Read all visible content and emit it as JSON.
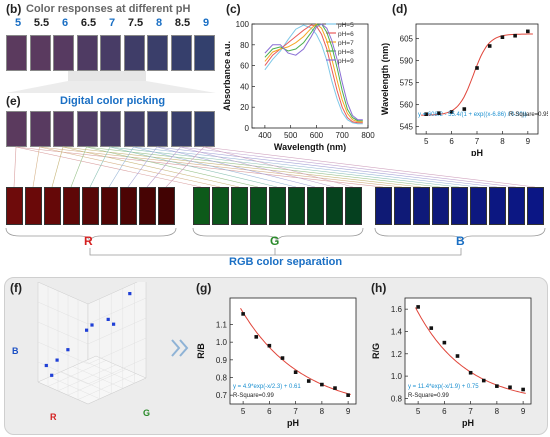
{
  "panels": {
    "b": {
      "label": "(b)",
      "title": "Color responses at different pH",
      "ph_labels": [
        "5",
        "5.5",
        "6",
        "6.5",
        "7",
        "7.5",
        "8",
        "8.5",
        "9"
      ],
      "blue_indices": [
        0,
        2,
        4,
        6,
        8
      ],
      "swatch_colors": [
        "#5b3a5e",
        "#5a3a5f",
        "#573a61",
        "#4f3b63",
        "#483c66",
        "#3f3d68",
        "#3a3e6a",
        "#363f6c",
        "#33406d"
      ]
    },
    "e": {
      "label": "(e)",
      "title": "Digital color picking",
      "swatch_colors": [
        "#5b3a5e",
        "#583a60",
        "#563b61",
        "#4f3c64",
        "#483d66",
        "#423e68",
        "#3d3e6a",
        "#393f6b",
        "#35406c"
      ]
    },
    "c": {
      "label": "(c)"
    },
    "d": {
      "label": "(d)"
    },
    "rgb": {
      "caption": "RGB color separation",
      "r_label": "R",
      "g_label": "G",
      "b_label": "B",
      "r_colors": [
        "#6e0b0b",
        "#6a0909",
        "#650808",
        "#5e0707",
        "#570606",
        "#510505",
        "#4c0404",
        "#470404",
        "#420303"
      ],
      "g_colors": [
        "#0d5a1a",
        "#0c561b",
        "#0b531b",
        "#0a4f1c",
        "#094c1d",
        "#08491d",
        "#07461e",
        "#06431e",
        "#05401f"
      ],
      "b_colors": [
        "#0f1a75",
        "#0f1a77",
        "#0e1979",
        "#0e197b",
        "#0d187d",
        "#0d187f",
        "#0c1781",
        "#0c1783",
        "#0b1685"
      ]
    },
    "f": {
      "label": "(f)",
      "axis_b": "B",
      "axis_r": "R",
      "axis_g": "G"
    },
    "g": {
      "label": "(g)"
    },
    "h": {
      "label": "(h)"
    }
  },
  "colors": {
    "accent_blue": "#1a6fc4",
    "red": "#d42020",
    "green": "#2a8a2a",
    "fit_red": "#e0453a"
  },
  "chart_data": [
    {
      "id": "c",
      "type": "line",
      "xlabel": "Wavelength (nm)",
      "ylabel": "Absorbance a.u.",
      "xlim": [
        350,
        800
      ],
      "ylim": [
        0,
        100
      ],
      "xticks": [
        400,
        500,
        600,
        700,
        800
      ],
      "yticks": [
        0,
        20,
        40,
        60,
        80,
        100
      ],
      "legend_position": "top-right",
      "series": [
        {
          "name": "pH=5",
          "color": "#7ec8e8",
          "x": [
            400,
            430,
            460,
            490,
            520,
            550,
            580,
            600,
            620,
            640,
            660,
            680,
            700,
            720,
            740,
            760,
            780
          ],
          "y": [
            56,
            66,
            74,
            85,
            95,
            99,
            96,
            90,
            80,
            65,
            45,
            28,
            15,
            8,
            5,
            4,
            4
          ]
        },
        {
          "name": "pH=6",
          "color": "#e85a5a",
          "x": [
            400,
            430,
            460,
            490,
            520,
            550,
            580,
            600,
            620,
            640,
            660,
            680,
            700,
            720,
            740,
            760,
            780
          ],
          "y": [
            60,
            70,
            76,
            82,
            88,
            94,
            99,
            98,
            90,
            76,
            56,
            36,
            20,
            10,
            6,
            5,
            5
          ]
        },
        {
          "name": "pH=7",
          "color": "#f5a623",
          "x": [
            400,
            430,
            460,
            490,
            520,
            550,
            580,
            600,
            620,
            640,
            660,
            680,
            700,
            720,
            740,
            760,
            780
          ],
          "y": [
            64,
            73,
            76,
            78,
            82,
            88,
            96,
            100,
            96,
            84,
            66,
            46,
            27,
            14,
            8,
            6,
            6
          ]
        },
        {
          "name": "pH=8",
          "color": "#4caf50",
          "x": [
            400,
            430,
            460,
            490,
            520,
            550,
            580,
            600,
            620,
            640,
            660,
            680,
            700,
            720,
            740,
            760,
            780
          ],
          "y": [
            68,
            76,
            78,
            74,
            76,
            82,
            92,
            99,
            100,
            92,
            78,
            58,
            36,
            18,
            10,
            7,
            7
          ]
        },
        {
          "name": "pH=9",
          "color": "#8a6fd6",
          "x": [
            400,
            430,
            460,
            490,
            520,
            550,
            580,
            600,
            620,
            640,
            660,
            680,
            700,
            720,
            740,
            760,
            780
          ],
          "y": [
            72,
            80,
            80,
            72,
            70,
            76,
            88,
            97,
            100,
            96,
            84,
            66,
            44,
            24,
            12,
            8,
            8
          ]
        }
      ]
    },
    {
      "id": "d",
      "type": "scatter",
      "xlabel": "pH",
      "ylabel": "Wavelength (nm)",
      "xlim": [
        4.6,
        9.4
      ],
      "ylim": [
        540,
        615
      ],
      "xticks": [
        5,
        6,
        7,
        8,
        9
      ],
      "yticks": [
        545,
        560,
        575,
        590,
        605
      ],
      "points": {
        "x": [
          5,
          5.5,
          6,
          6.5,
          7,
          7.5,
          8,
          8.5,
          9
        ],
        "y": [
          553.5,
          554.2,
          555,
          557,
          585,
          600,
          606,
          607,
          610
        ]
      },
      "fit": {
        "a": 608.2,
        "b": -55.4,
        "x0": 6.86,
        "dx": 0.3
      },
      "fit_label": "y = 608.2 - 55.4/(1 + exp((x-6.86) / 0.30))",
      "r_square_label": "R-Square=0.95"
    },
    {
      "id": "g",
      "type": "scatter",
      "xlabel": "pH",
      "ylabel": "R/B",
      "xlim": [
        4.5,
        9.3
      ],
      "ylim": [
        0.65,
        1.25
      ],
      "xticks": [
        5,
        6,
        7,
        8,
        9
      ],
      "yticks": [
        0.7,
        0.8,
        0.9,
        1.0,
        1.1
      ],
      "points": {
        "x": [
          5,
          5.5,
          6,
          6.5,
          7,
          7.5,
          8,
          8.5,
          9
        ],
        "y": [
          1.16,
          1.03,
          0.98,
          0.91,
          0.83,
          0.78,
          0.76,
          0.74,
          0.7
        ]
      },
      "fit": {
        "a": 4.9,
        "t": 2.3,
        "c": 0.61
      },
      "fit_label": "y = 4.9*exp(-x/2.3) + 0.61",
      "r_square_label": "R-Square=0.99"
    },
    {
      "id": "h",
      "type": "scatter",
      "xlabel": "pH",
      "ylabel": "R/G",
      "xlim": [
        4.5,
        9.3
      ],
      "ylim": [
        0.75,
        1.7
      ],
      "xticks": [
        5,
        6,
        7,
        8,
        9
      ],
      "yticks": [
        0.8,
        1.0,
        1.2,
        1.4,
        1.6
      ],
      "points": {
        "x": [
          5,
          5.5,
          6,
          6.5,
          7,
          7.5,
          8,
          8.5,
          9
        ],
        "y": [
          1.62,
          1.43,
          1.3,
          1.18,
          1.03,
          0.96,
          0.91,
          0.9,
          0.88
        ]
      },
      "fit": {
        "a": 11.4,
        "t": 1.9,
        "c": 0.75
      },
      "fit_label": "y = 11.4*exp(-x/1.9) + 0.75",
      "r_square_label": "R-Square=0.99"
    },
    {
      "id": "f",
      "type": "scatter",
      "axes": [
        "R",
        "G",
        "B"
      ],
      "points": [
        {
          "r": 0.15,
          "g": 0.85,
          "b": 0.85
        },
        {
          "r": 0.3,
          "g": 0.7,
          "b": 0.55
        },
        {
          "r": 0.35,
          "g": 0.65,
          "b": 0.6
        },
        {
          "r": 0.5,
          "g": 0.5,
          "b": 0.55
        },
        {
          "r": 0.55,
          "g": 0.45,
          "b": 0.5
        },
        {
          "r": 0.75,
          "g": 0.3,
          "b": 0.3
        },
        {
          "r": 0.85,
          "g": 0.2,
          "b": 0.2
        },
        {
          "r": 0.9,
          "g": 0.15,
          "b": 0.05
        },
        {
          "r": 0.95,
          "g": 0.1,
          "b": 0.15
        }
      ]
    }
  ]
}
